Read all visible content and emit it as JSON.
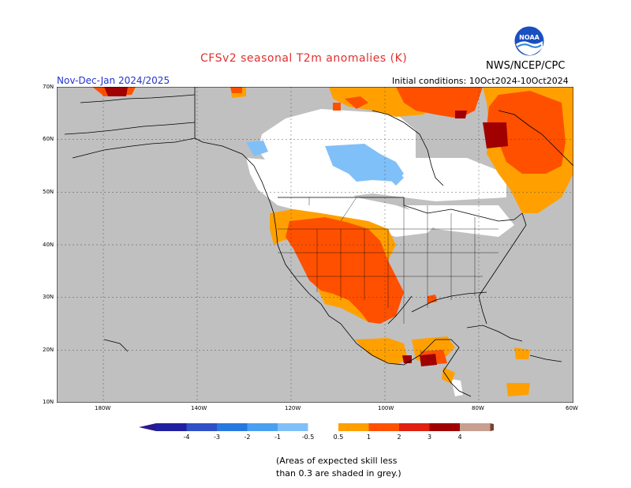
{
  "header": {
    "title": "CFSv2 seasonal T2m anomalies (K)",
    "season": "Nov-Dec-Jan 2024/2025",
    "initial_conditions": "Initial conditions: 10Oct2024-10Oct2024",
    "agency": "NWS/NCEP/CPC",
    "logo_text": "NOAA"
  },
  "map": {
    "lat_labels": [
      "70N",
      "60N",
      "50N",
      "40N",
      "30N",
      "20N",
      "10N"
    ],
    "lon_labels": [
      "180W",
      "140W",
      "120W",
      "100W",
      "80W",
      "60W"
    ],
    "no_skill_color": "#c0c0c0",
    "land_color": "#ffffff"
  },
  "legend": {
    "bins": [
      {
        "label": "-4",
        "color": "#2020a0"
      },
      {
        "label": "-3",
        "color": "#3050c8"
      },
      {
        "label": "-2",
        "color": "#2878e0"
      },
      {
        "label": "-1",
        "color": "#4aa0f0"
      },
      {
        "label": "-0.5",
        "color": "#80c0f8"
      },
      {
        "label": "0.5",
        "color": "#ffffff"
      },
      {
        "label": "1",
        "color": "#ffa000"
      },
      {
        "label": "2",
        "color": "#ff5000"
      },
      {
        "label": "3",
        "color": "#e02010"
      },
      {
        "label": "4",
        "color": "#a00000"
      },
      {
        "label": "",
        "color": "#c8a090"
      }
    ],
    "low_cap_color": "#2a1a90",
    "high_cap_color": "#7a4030"
  },
  "footnote": {
    "line1": "(Areas of expected skill less",
    "line2": "than 0.3 are shaded in grey.)"
  }
}
